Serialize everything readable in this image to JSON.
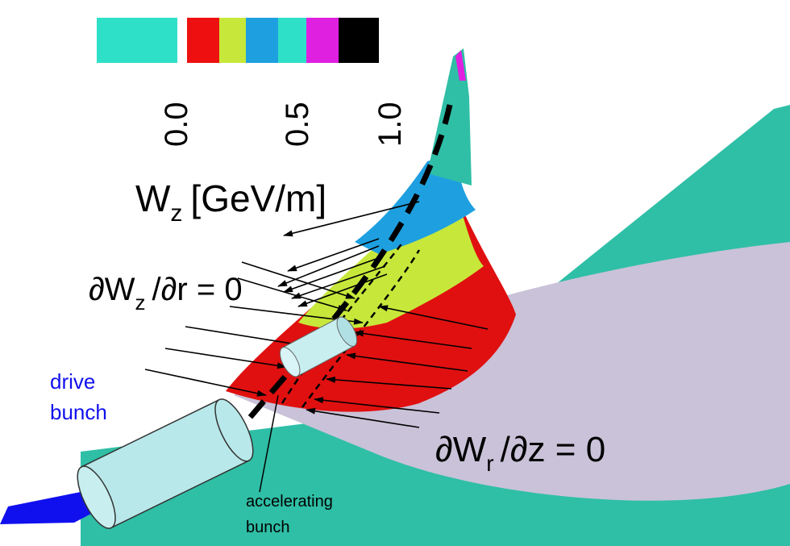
{
  "colorbar": {
    "tick_labels": [
      "0.0",
      "0.5",
      "1.0"
    ]
  },
  "axis_label": {
    "symbol": "W",
    "subscript": "z",
    "unit": "[GeV/m]"
  },
  "annotations": {
    "radial_condition": {
      "symbol": "∂W",
      "subscript": "z",
      "rest": "/∂r = 0"
    },
    "longitudinal_condition": {
      "symbol": "∂W",
      "subscript": "r",
      "rest": "/∂z = 0"
    },
    "drive_bunch": [
      "drive",
      "bunch"
    ],
    "accelerating_bunch": [
      "accelerating",
      "bunch"
    ]
  }
}
